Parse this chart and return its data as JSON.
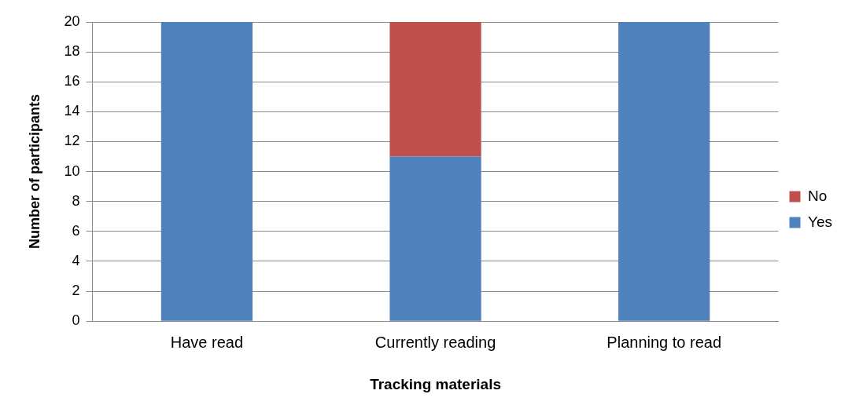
{
  "chart_data": {
    "type": "bar",
    "stacked": true,
    "xlabel": "Tracking materials",
    "ylabel": "Number of participants",
    "categories": [
      "Have read",
      "Currently reading",
      "Planning to read"
    ],
    "series": [
      {
        "name": "Yes",
        "color": "#4f81bd",
        "values": [
          20,
          11,
          20
        ]
      },
      {
        "name": "No",
        "color": "#c0504d",
        "values": [
          0,
          9,
          0
        ]
      }
    ],
    "ylim": [
      0,
      20
    ],
    "yticks": [
      0,
      2,
      4,
      6,
      8,
      10,
      12,
      14,
      16,
      18,
      20
    ],
    "grid": "y",
    "legend": "right"
  }
}
